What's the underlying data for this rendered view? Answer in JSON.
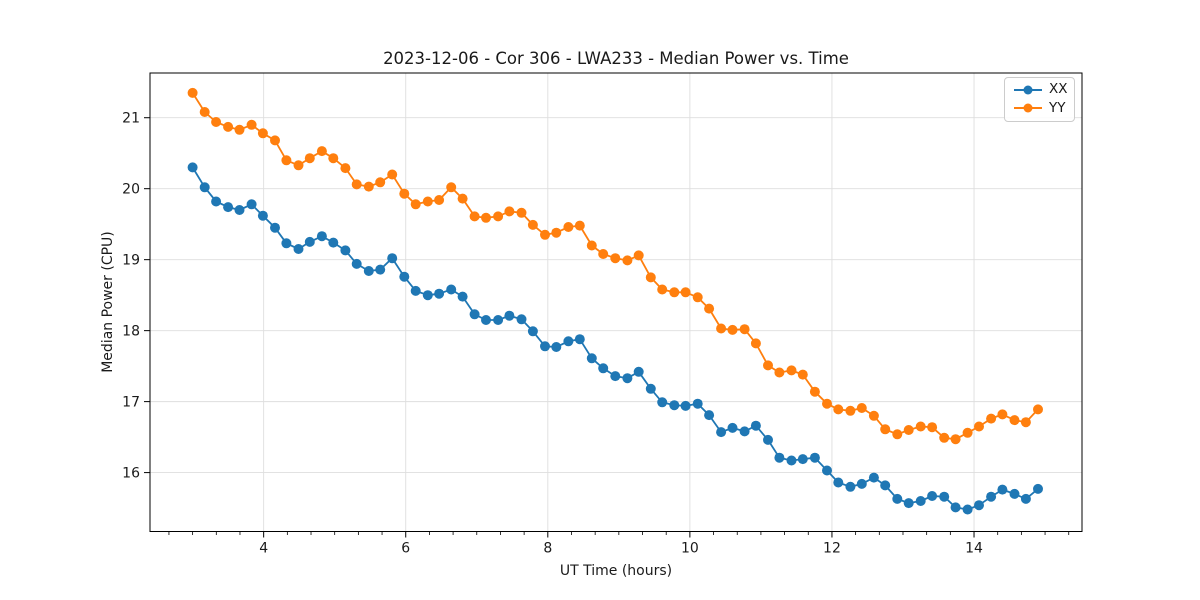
{
  "chart_data": {
    "type": "line",
    "title": "2023-12-06 - Cor 306 - LWA233 - Median Power vs. Time",
    "xlabel": "UT Time (hours)",
    "ylabel": "Median Power (CPU)",
    "x_ticks": [
      4,
      6,
      8,
      10,
      12,
      14
    ],
    "y_ticks": [
      16,
      17,
      18,
      19,
      20,
      21
    ],
    "xlim": [
      2.4,
      15.52
    ],
    "ylim": [
      15.17,
      21.63
    ],
    "grid": true,
    "marker": "o",
    "legend_position": "upper right",
    "x_minor_tick_step_hours": 0.3333,
    "x": [
      3.0,
      3.17,
      3.33,
      3.5,
      3.66,
      3.83,
      3.99,
      4.16,
      4.32,
      4.49,
      4.65,
      4.82,
      4.98,
      5.15,
      5.31,
      5.48,
      5.64,
      5.81,
      5.98,
      6.14,
      6.31,
      6.47,
      6.64,
      6.8,
      6.97,
      7.13,
      7.3,
      7.46,
      7.63,
      7.79,
      7.96,
      8.12,
      8.29,
      8.45,
      8.62,
      8.78,
      8.95,
      9.12,
      9.28,
      9.45,
      9.61,
      9.78,
      9.94,
      10.11,
      10.27,
      10.44,
      10.6,
      10.77,
      10.93,
      11.1,
      11.26,
      11.43,
      11.59,
      11.76,
      11.93,
      12.09,
      12.26,
      12.42,
      12.59,
      12.75,
      12.92,
      13.08,
      13.25,
      13.41,
      13.58,
      13.74,
      13.91,
      14.07,
      14.24,
      14.4,
      14.57,
      14.73,
      14.9
    ],
    "series": [
      {
        "name": "XX",
        "color": "#1f77b4",
        "values": [
          20.3,
          20.02,
          19.82,
          19.74,
          19.7,
          19.78,
          19.62,
          19.45,
          19.23,
          19.15,
          19.25,
          19.33,
          19.24,
          19.13,
          18.94,
          18.84,
          18.86,
          19.02,
          18.76,
          18.56,
          18.5,
          18.52,
          18.58,
          18.48,
          18.23,
          18.15,
          18.15,
          18.21,
          18.16,
          17.99,
          17.78,
          17.77,
          17.85,
          17.88,
          17.61,
          17.47,
          17.36,
          17.33,
          17.42,
          17.18,
          16.99,
          16.95,
          16.94,
          16.97,
          16.81,
          16.57,
          16.63,
          16.58,
          16.66,
          16.46,
          16.21,
          16.17,
          16.19,
          16.21,
          16.03,
          15.86,
          15.8,
          15.84,
          15.93,
          15.82,
          15.63,
          15.57,
          15.6,
          15.67,
          15.66,
          15.51,
          15.48,
          15.54,
          15.66,
          15.76,
          15.7,
          15.63,
          15.77
        ]
      },
      {
        "name": "YY",
        "color": "#ff7f0e",
        "values": [
          21.35,
          21.08,
          20.94,
          20.87,
          20.83,
          20.9,
          20.78,
          20.68,
          20.4,
          20.33,
          20.43,
          20.53,
          20.43,
          20.29,
          20.06,
          20.03,
          20.09,
          20.2,
          19.93,
          19.78,
          19.82,
          19.84,
          20.02,
          19.86,
          19.61,
          19.59,
          19.61,
          19.68,
          19.66,
          19.49,
          19.35,
          19.38,
          19.46,
          19.48,
          19.2,
          19.08,
          19.02,
          18.99,
          19.06,
          18.75,
          18.58,
          18.54,
          18.54,
          18.47,
          18.31,
          18.03,
          18.01,
          18.02,
          17.82,
          17.51,
          17.41,
          17.44,
          17.38,
          17.14,
          16.97,
          16.89,
          16.87,
          16.91,
          16.8,
          16.61,
          16.54,
          16.6,
          16.65,
          16.64,
          16.49,
          16.47,
          16.56,
          16.65,
          16.76,
          16.82,
          16.74,
          16.71,
          16.89
        ]
      }
    ]
  },
  "style": {
    "grid_color": "#dedede",
    "spine_color": "#000000",
    "tick_label_color": "#1a1a1a"
  }
}
